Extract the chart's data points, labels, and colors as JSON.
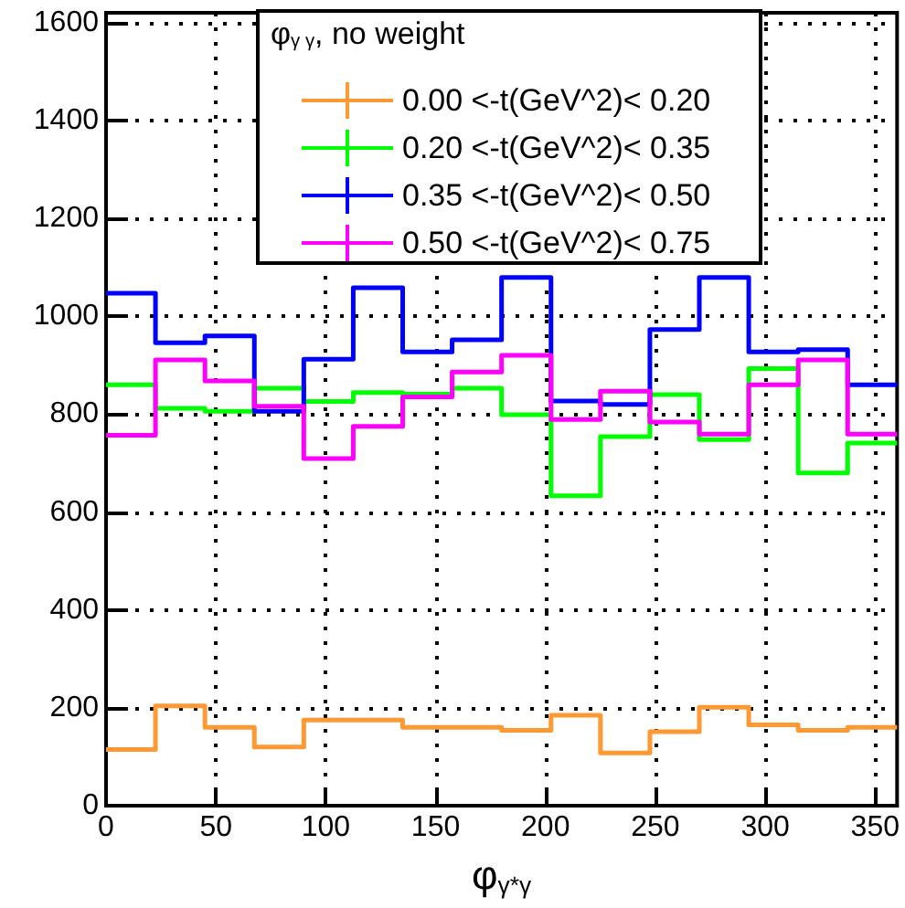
{
  "chart_data": {
    "type": "histogram",
    "legend_title": "φ$_{γ γ}$, no weight",
    "xlabel": "φ$_{γ*γ}$",
    "bins": [
      0,
      22.5,
      45,
      67.5,
      90,
      112.5,
      135,
      157.5,
      180,
      202.5,
      225,
      247.5,
      270,
      292.5,
      315,
      337.5,
      360
    ],
    "series": [
      {
        "name": "0.00 <-t(GeV^2)< 0.20",
        "color": "#ff9933",
        "values": [
          115,
          204,
          160,
          120,
          175,
          175,
          160,
          160,
          154,
          185,
          108,
          151,
          201,
          165,
          154,
          160
        ]
      },
      {
        "name": "0.20 <-t(GeV^2)< 0.35",
        "color": "#00ff00",
        "values": [
          860,
          812,
          806,
          853,
          826,
          844,
          841,
          853,
          799,
          633,
          754,
          840,
          748,
          893,
          680,
          741
        ]
      },
      {
        "name": "0.35 <-t(GeV^2)< 0.50",
        "color": "#0000ff",
        "values": [
          1047,
          946,
          960,
          806,
          912,
          1058,
          927,
          952,
          1079,
          827,
          820,
          973,
          1079,
          927,
          932,
          860
        ]
      },
      {
        "name": "0.50 <-t(GeV^2)< 0.75",
        "color": "#ff00ff",
        "values": [
          757,
          911,
          868,
          816,
          709,
          775,
          835,
          886,
          920,
          789,
          847,
          784,
          759,
          860,
          911,
          759
        ]
      }
    ],
    "xlim": [
      0,
      360
    ],
    "xticks": [
      0,
      50,
      100,
      150,
      200,
      250,
      300,
      350
    ],
    "ylim": [
      0,
      1620
    ],
    "yticks": [
      0,
      200,
      400,
      600,
      800,
      1000,
      1200,
      1400,
      1600
    ],
    "grid": true,
    "legend": "top"
  }
}
